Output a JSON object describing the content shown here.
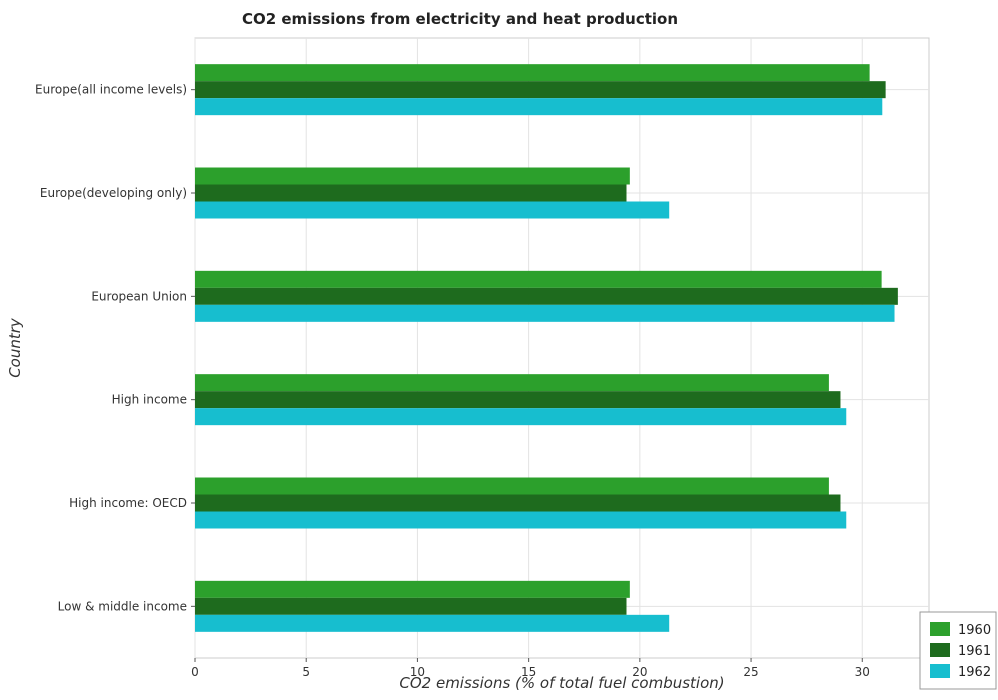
{
  "chart_data": {
    "type": "bar",
    "orientation": "horizontal",
    "title": "CO2 emissions from electricity and heat production",
    "xlabel": "CO2 emissions (% of total fuel combustion)",
    "ylabel": "Country",
    "xlim": [
      0,
      33
    ],
    "xticks": [
      0,
      5,
      10,
      15,
      20,
      25,
      30
    ],
    "grid": true,
    "legend_position": "bottom-right",
    "categories": [
      "Europe(all income levels)",
      "Europe(developing only)",
      "European Union",
      "High income",
      "High income: OECD",
      "Low & middle income"
    ],
    "series": [
      {
        "name": "1960",
        "color": "#2ca02c",
        "values": [
          30.33,
          19.55,
          30.87,
          28.5,
          28.5,
          19.55
        ]
      },
      {
        "name": "1961",
        "color": "#1e6b1e",
        "values": [
          31.05,
          19.4,
          31.6,
          29.02,
          29.02,
          19.4
        ]
      },
      {
        "name": "1962",
        "color": "#17becf",
        "values": [
          30.9,
          21.32,
          31.45,
          29.28,
          29.28,
          21.32
        ]
      }
    ]
  }
}
